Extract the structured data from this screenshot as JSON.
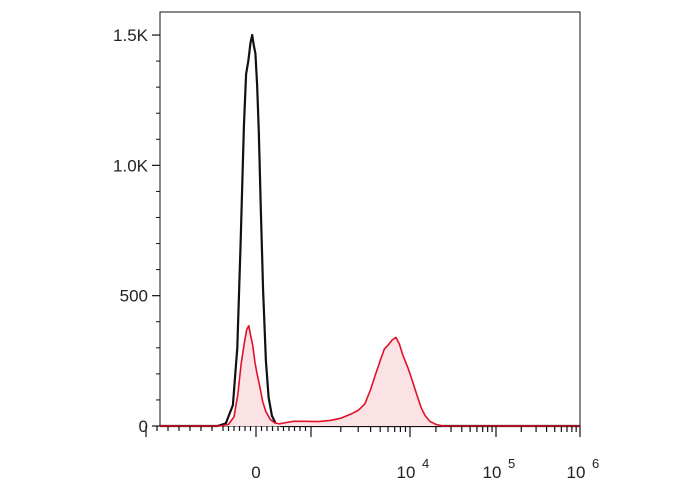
{
  "chart_data": {
    "type": "area",
    "title": "",
    "xlabel": "",
    "ylabel": "",
    "x_scale": "biexponential",
    "xlim": [
      -2000,
      1000000
    ],
    "ylim": [
      0,
      1550
    ],
    "grid": false,
    "legend": "none",
    "x_ticks": [
      {
        "value": 0,
        "base": "0",
        "exp": ""
      },
      {
        "value": 10000,
        "base": "10",
        "exp": "4"
      },
      {
        "value": 100000,
        "base": "10",
        "exp": "5"
      },
      {
        "value": 1000000,
        "base": "10",
        "exp": "6"
      }
    ],
    "y_ticks": [
      {
        "value": 0,
        "label": "0"
      },
      {
        "value": 500,
        "label": "500"
      },
      {
        "value": 1000,
        "label": "1.0K"
      },
      {
        "value": 1500,
        "label": "1.5K"
      }
    ],
    "series": [
      {
        "color": "#111111",
        "fill": "none",
        "points": [
          [
            -2000,
            0
          ],
          [
            -700,
            0
          ],
          [
            -550,
            10
          ],
          [
            -420,
            80
          ],
          [
            -340,
            300
          ],
          [
            -280,
            700
          ],
          [
            -220,
            1150
          ],
          [
            -180,
            1350
          ],
          [
            -140,
            1400
          ],
          [
            -100,
            1470
          ],
          [
            -70,
            1500
          ],
          [
            -40,
            1460
          ],
          [
            -10,
            1430
          ],
          [
            20,
            1310
          ],
          [
            50,
            1130
          ],
          [
            90,
            820
          ],
          [
            130,
            520
          ],
          [
            180,
            250
          ],
          [
            230,
            110
          ],
          [
            290,
            40
          ],
          [
            360,
            8
          ],
          [
            450,
            0
          ],
          [
            1000000,
            0
          ]
        ]
      },
      {
        "color": "#e0102a",
        "fill": "#fbe3e5",
        "points": [
          [
            -2000,
            0
          ],
          [
            -650,
            0
          ],
          [
            -500,
            6
          ],
          [
            -400,
            35
          ],
          [
            -330,
            120
          ],
          [
            -270,
            240
          ],
          [
            -210,
            320
          ],
          [
            -170,
            370
          ],
          [
            -130,
            385
          ],
          [
            -100,
            350
          ],
          [
            -60,
            310
          ],
          [
            -20,
            245
          ],
          [
            20,
            200
          ],
          [
            70,
            150
          ],
          [
            120,
            95
          ],
          [
            180,
            55
          ],
          [
            260,
            25
          ],
          [
            340,
            12
          ],
          [
            420,
            8
          ],
          [
            520,
            12
          ],
          [
            680,
            18
          ],
          [
            900,
            18
          ],
          [
            1200,
            17
          ],
          [
            1600,
            22
          ],
          [
            2000,
            30
          ],
          [
            2500,
            45
          ],
          [
            3000,
            60
          ],
          [
            3500,
            85
          ],
          [
            4000,
            140
          ],
          [
            4500,
            200
          ],
          [
            5000,
            250
          ],
          [
            5500,
            295
          ],
          [
            6000,
            310
          ],
          [
            6600,
            330
          ],
          [
            7200,
            340
          ],
          [
            7800,
            315
          ],
          [
            8500,
            270
          ],
          [
            9500,
            225
          ],
          [
            10500,
            180
          ],
          [
            12000,
            120
          ],
          [
            13500,
            70
          ],
          [
            15000,
            40
          ],
          [
            17000,
            18
          ],
          [
            20000,
            6
          ],
          [
            24000,
            0
          ],
          [
            1000000,
            0
          ]
        ]
      }
    ]
  }
}
